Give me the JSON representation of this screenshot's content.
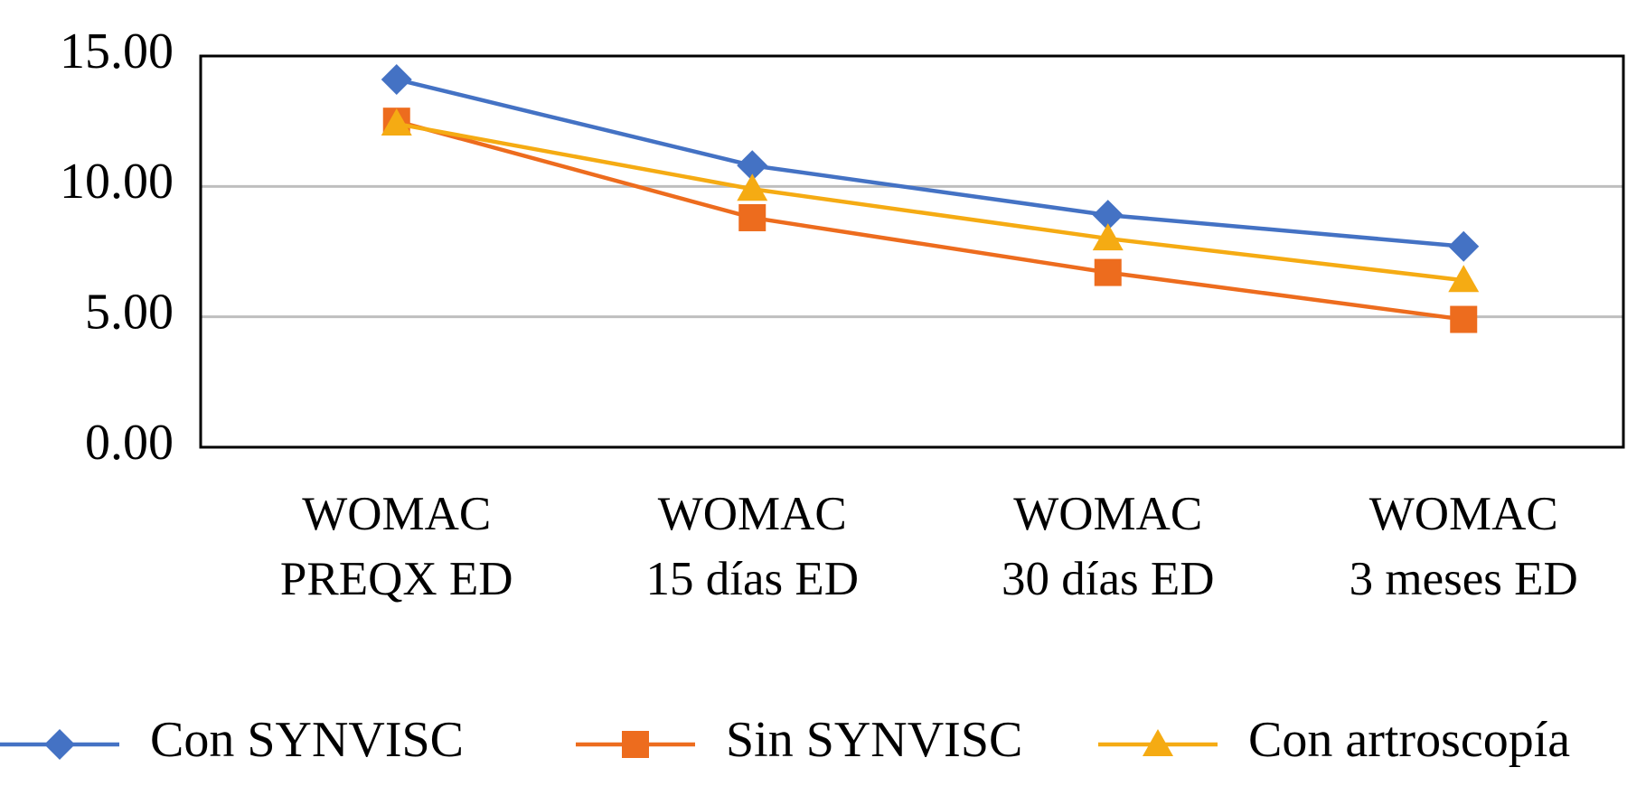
{
  "chart_data": {
    "type": "line",
    "categories": [
      [
        "WOMAC",
        "PREQX ED"
      ],
      [
        "WOMAC",
        "15 días ED"
      ],
      [
        "WOMAC",
        "30 días ED"
      ],
      [
        "WOMAC",
        "3 meses ED"
      ]
    ],
    "series": [
      {
        "name": "Con SYNVISC",
        "color": "#4472c4",
        "marker": "diamond",
        "values": [
          14.1,
          10.8,
          8.9,
          7.7
        ]
      },
      {
        "name": "Sin SYNVISC",
        "color": "#ed6c1e",
        "marker": "square",
        "values": [
          12.5,
          8.8,
          6.7,
          4.9
        ]
      },
      {
        "name": "Con artroscopía",
        "color": "#f5ab13",
        "marker": "triangle",
        "values": [
          12.4,
          9.9,
          8.0,
          6.4
        ]
      }
    ],
    "ylim": [
      0,
      15
    ],
    "yticks": [
      {
        "value": 0,
        "label": "0.00"
      },
      {
        "value": 5,
        "label": "5.00"
      },
      {
        "value": 10,
        "label": "10.00"
      },
      {
        "value": 15,
        "label": "15.00"
      }
    ],
    "grid": true,
    "legend": "bottom"
  }
}
